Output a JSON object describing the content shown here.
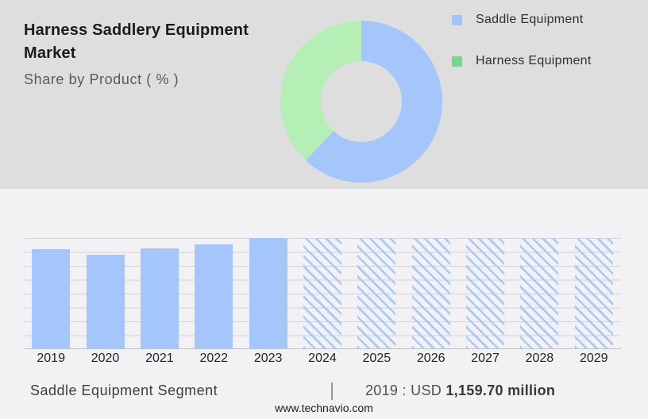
{
  "header": {
    "title": "Harness Saddlery Equipment Market",
    "subtitle": "Share by Product ( % )"
  },
  "legend": {
    "items": [
      {
        "label": "Saddle Equipment",
        "color": "#a3c4f8"
      },
      {
        "label": "Harness Equipment",
        "color": "#70db8e"
      }
    ]
  },
  "chart_data": [
    {
      "type": "pie",
      "subtype": "donut",
      "title": "Harness Saddlery Equipment Market - Share by Product ( % )",
      "labels": [
        "Saddle Equipment",
        "Harness Equipment"
      ],
      "values_pct": [
        62,
        38
      ],
      "colors": [
        "#a5c6fa",
        "#b5efb5"
      ],
      "start_angle_deg": 0,
      "legend_position": "right",
      "note": "percentages estimated from arc angles; no numeric labels shown in image"
    },
    {
      "type": "bar",
      "categories": [
        "2019",
        "2020",
        "2021",
        "2022",
        "2023",
        "2024",
        "2025",
        "2026",
        "2027",
        "2028",
        "2029"
      ],
      "values_relative_pct": [
        90,
        85,
        90.5,
        94.5,
        100,
        100,
        100,
        100,
        100,
        100,
        100
      ],
      "styles": [
        "solid",
        "solid",
        "solid",
        "solid",
        "solid",
        "hatched",
        "hatched",
        "hatched",
        "hatched",
        "hatched",
        "hatched"
      ],
      "forecast_from": "2024",
      "bar_color": "#a5c6fa",
      "gridline_count": 9,
      "ylabel": "",
      "xlabel": "",
      "ylim": null,
      "note": "no y-axis values shown; heights relative to 2023 = 100; 2024-2029 are hatched forecast bars"
    }
  ],
  "footer": {
    "segment_label": "Saddle Equipment Segment",
    "divider": "|",
    "value_prefix": "2019 : USD ",
    "value_bold": "1,159.70 million",
    "website": "www.technavio.com"
  },
  "colors": {
    "top_background": "#dedede",
    "bottom_background": "#f2f2f4",
    "bar_blue": "#a5c6fa",
    "donut_green": "#b5efb5",
    "legend_green": "#70db8e",
    "gridline": "#d3d3d7",
    "axis_line": "#c2c2c6",
    "hatch_blue": "#a9c9f8"
  }
}
